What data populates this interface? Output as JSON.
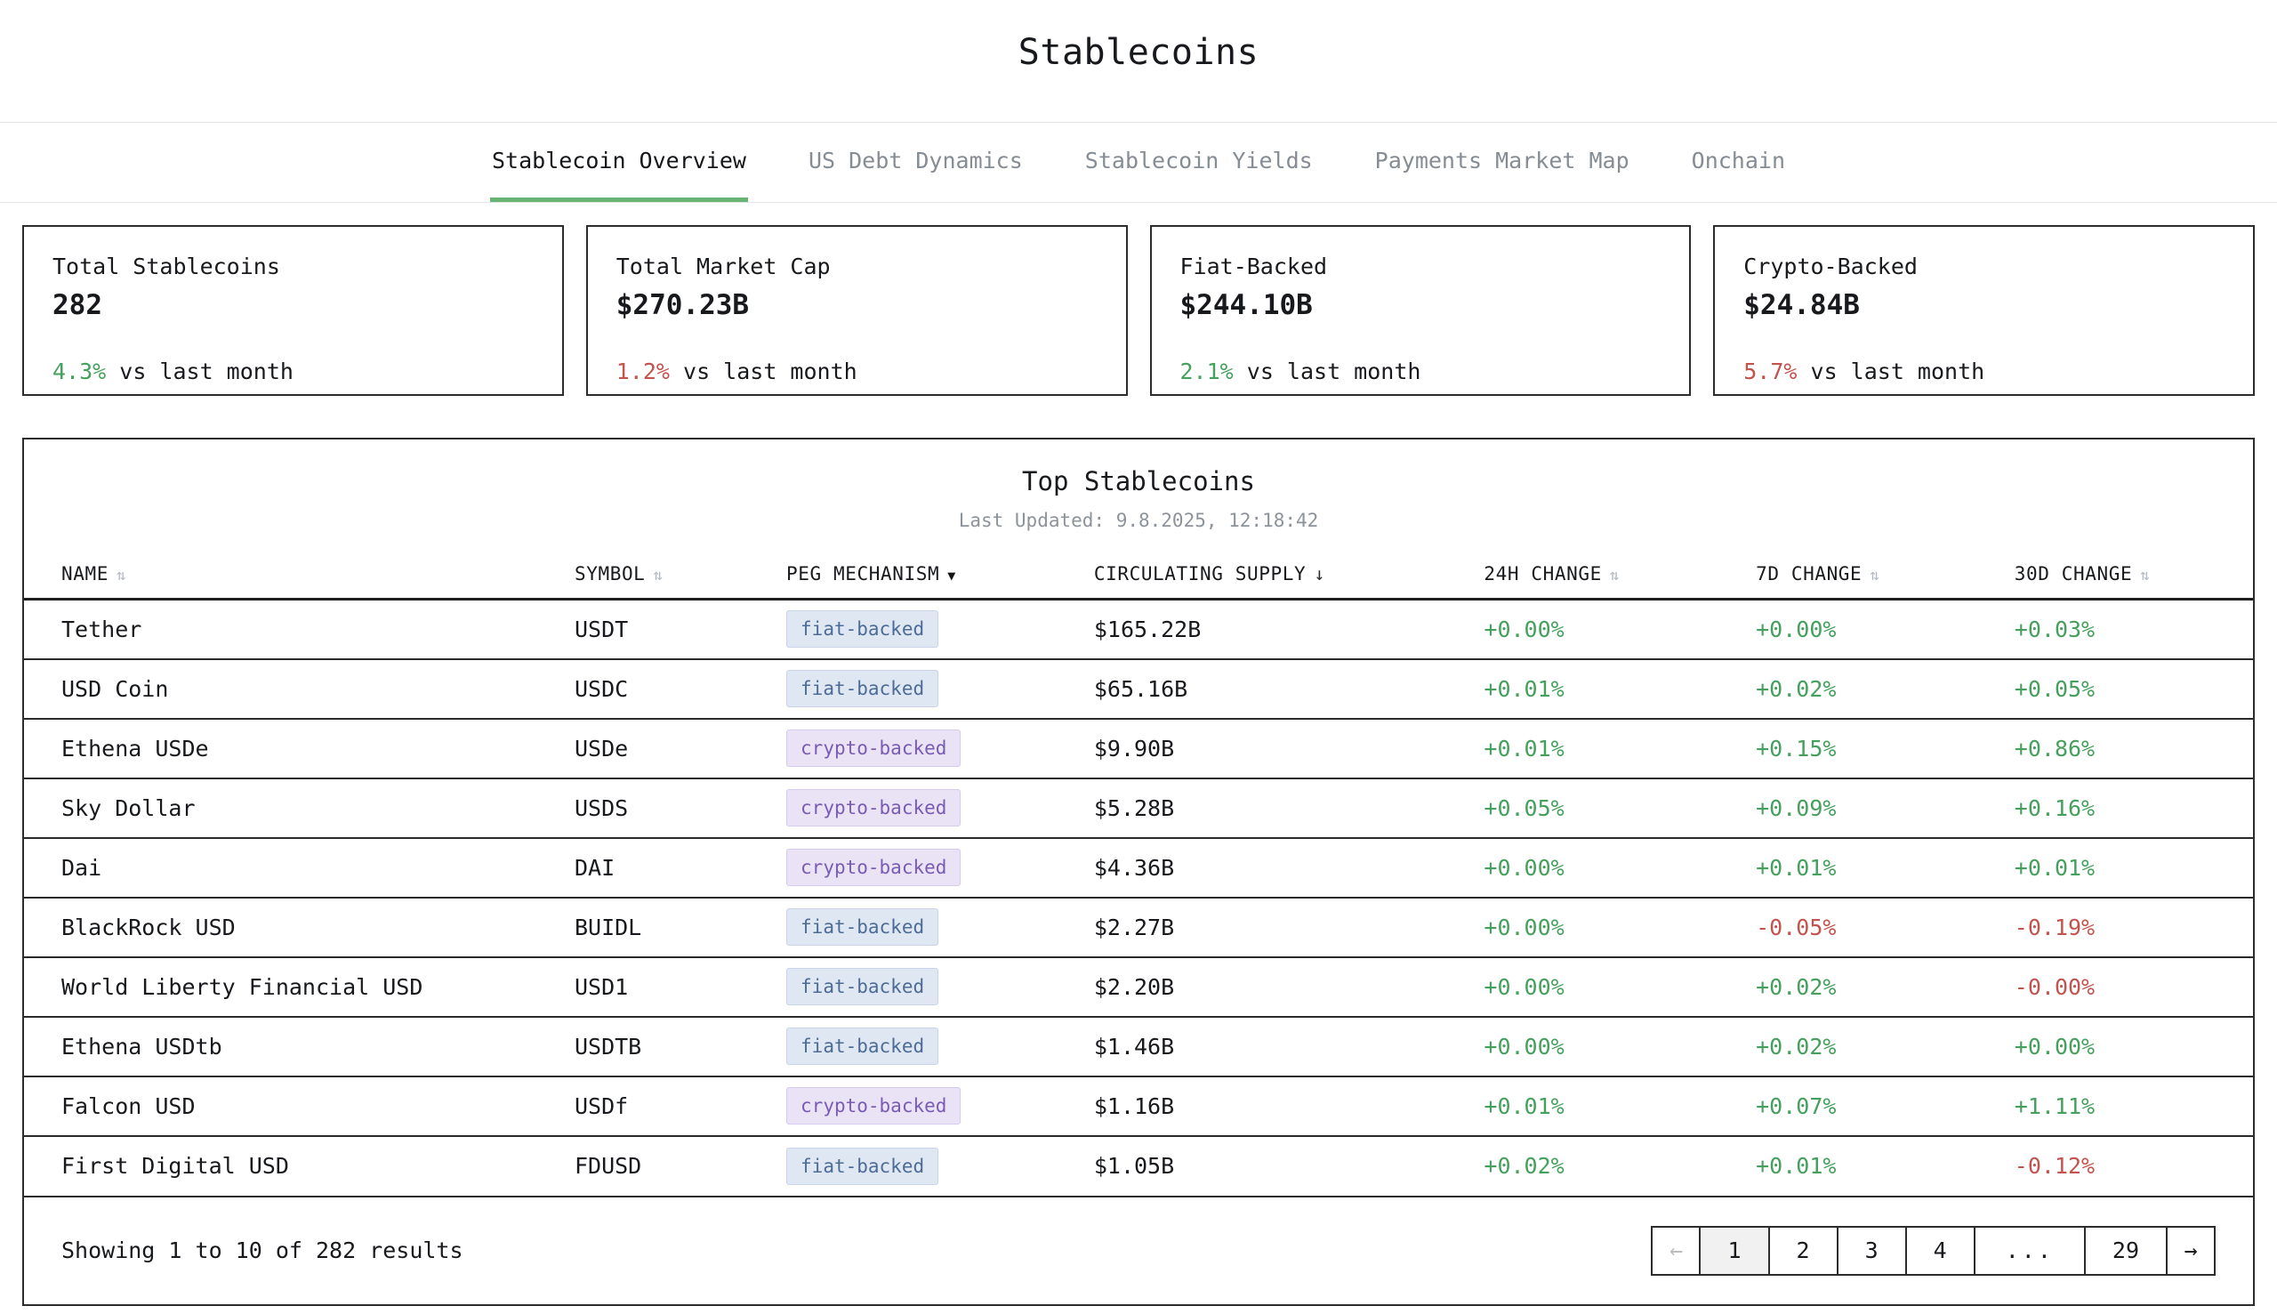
{
  "page": {
    "title": "Stablecoins"
  },
  "tabs": [
    {
      "label": "Stablecoin Overview",
      "active": true
    },
    {
      "label": "US Debt Dynamics",
      "active": false
    },
    {
      "label": "Stablecoin Yields",
      "active": false
    },
    {
      "label": "Payments Market Map",
      "active": false
    },
    {
      "label": "Onchain",
      "active": false
    }
  ],
  "stat_cards": [
    {
      "label": "Total Stablecoins",
      "value": "282",
      "change": "4.3%",
      "direction": "up",
      "suffix": " vs last month"
    },
    {
      "label": "Total Market Cap",
      "value": "$270.23B",
      "change": "1.2%",
      "direction": "down",
      "suffix": " vs last month"
    },
    {
      "label": "Fiat-Backed",
      "value": "$244.10B",
      "change": "2.1%",
      "direction": "up",
      "suffix": " vs last month"
    },
    {
      "label": "Crypto-Backed",
      "value": "$24.84B",
      "change": "5.7%",
      "direction": "down",
      "suffix": " vs last month"
    }
  ],
  "table": {
    "title": "Top Stablecoins",
    "last_updated": "Last Updated: 9.8.2025, 12:18:42",
    "sort_icons": {
      "both": "⇅",
      "desc": "↓",
      "filter": "▼"
    },
    "columns": [
      {
        "label": "NAME",
        "sort": "both"
      },
      {
        "label": "SYMBOL",
        "sort": "both"
      },
      {
        "label": "PEG MECHANISM",
        "sort": "filter"
      },
      {
        "label": "CIRCULATING SUPPLY",
        "sort": "desc"
      },
      {
        "label": "24H CHANGE",
        "sort": "both"
      },
      {
        "label": "7D CHANGE",
        "sort": "both"
      },
      {
        "label": "30D CHANGE",
        "sort": "both"
      }
    ],
    "rows": [
      {
        "name": "Tether",
        "symbol": "USDT",
        "peg": "fiat-backed",
        "supply": "$165.22B",
        "change_24h": "+0.00%",
        "change_7d": "+0.00%",
        "change_30d": "+0.03%"
      },
      {
        "name": "USD Coin",
        "symbol": "USDC",
        "peg": "fiat-backed",
        "supply": "$65.16B",
        "change_24h": "+0.01%",
        "change_7d": "+0.02%",
        "change_30d": "+0.05%"
      },
      {
        "name": "Ethena USDe",
        "symbol": "USDe",
        "peg": "crypto-backed",
        "supply": "$9.90B",
        "change_24h": "+0.01%",
        "change_7d": "+0.15%",
        "change_30d": "+0.86%"
      },
      {
        "name": "Sky Dollar",
        "symbol": "USDS",
        "peg": "crypto-backed",
        "supply": "$5.28B",
        "change_24h": "+0.05%",
        "change_7d": "+0.09%",
        "change_30d": "+0.16%"
      },
      {
        "name": "Dai",
        "symbol": "DAI",
        "peg": "crypto-backed",
        "supply": "$4.36B",
        "change_24h": "+0.00%",
        "change_7d": "+0.01%",
        "change_30d": "+0.01%"
      },
      {
        "name": "BlackRock USD",
        "symbol": "BUIDL",
        "peg": "fiat-backed",
        "supply": "$2.27B",
        "change_24h": "+0.00%",
        "change_7d": "-0.05%",
        "change_30d": "-0.19%"
      },
      {
        "name": "World Liberty Financial USD",
        "symbol": "USD1",
        "peg": "fiat-backed",
        "supply": "$2.20B",
        "change_24h": "+0.00%",
        "change_7d": "+0.02%",
        "change_30d": "-0.00%"
      },
      {
        "name": "Ethena USDtb",
        "symbol": "USDTB",
        "peg": "fiat-backed",
        "supply": "$1.46B",
        "change_24h": "+0.00%",
        "change_7d": "+0.02%",
        "change_30d": "+0.00%"
      },
      {
        "name": "Falcon USD",
        "symbol": "USDf",
        "peg": "crypto-backed",
        "supply": "$1.16B",
        "change_24h": "+0.01%",
        "change_7d": "+0.07%",
        "change_30d": "+1.11%"
      },
      {
        "name": "First Digital USD",
        "symbol": "FDUSD",
        "peg": "fiat-backed",
        "supply": "$1.05B",
        "change_24h": "+0.02%",
        "change_7d": "+0.01%",
        "change_30d": "-0.12%"
      }
    ]
  },
  "footer": {
    "showing": "Showing 1 to 10 of 282 results",
    "pagination": [
      {
        "label": "←",
        "type": "prev",
        "disabled": true
      },
      {
        "label": "1",
        "type": "page",
        "current": true
      },
      {
        "label": "2",
        "type": "page"
      },
      {
        "label": "3",
        "type": "page"
      },
      {
        "label": "4",
        "type": "page"
      },
      {
        "label": "...",
        "type": "ellipsis"
      },
      {
        "label": "29",
        "type": "page"
      },
      {
        "label": "→",
        "type": "next"
      }
    ]
  },
  "colors": {
    "accent_green": "#68b474",
    "positive_text": "#44a05c",
    "negative_text": "#c4524d",
    "fiat_badge_bg": "#dfe7f3",
    "fiat_badge_text": "#4c6c96",
    "crypto_badge_bg": "#e9e3f5",
    "crypto_badge_text": "#7a5bb3"
  }
}
